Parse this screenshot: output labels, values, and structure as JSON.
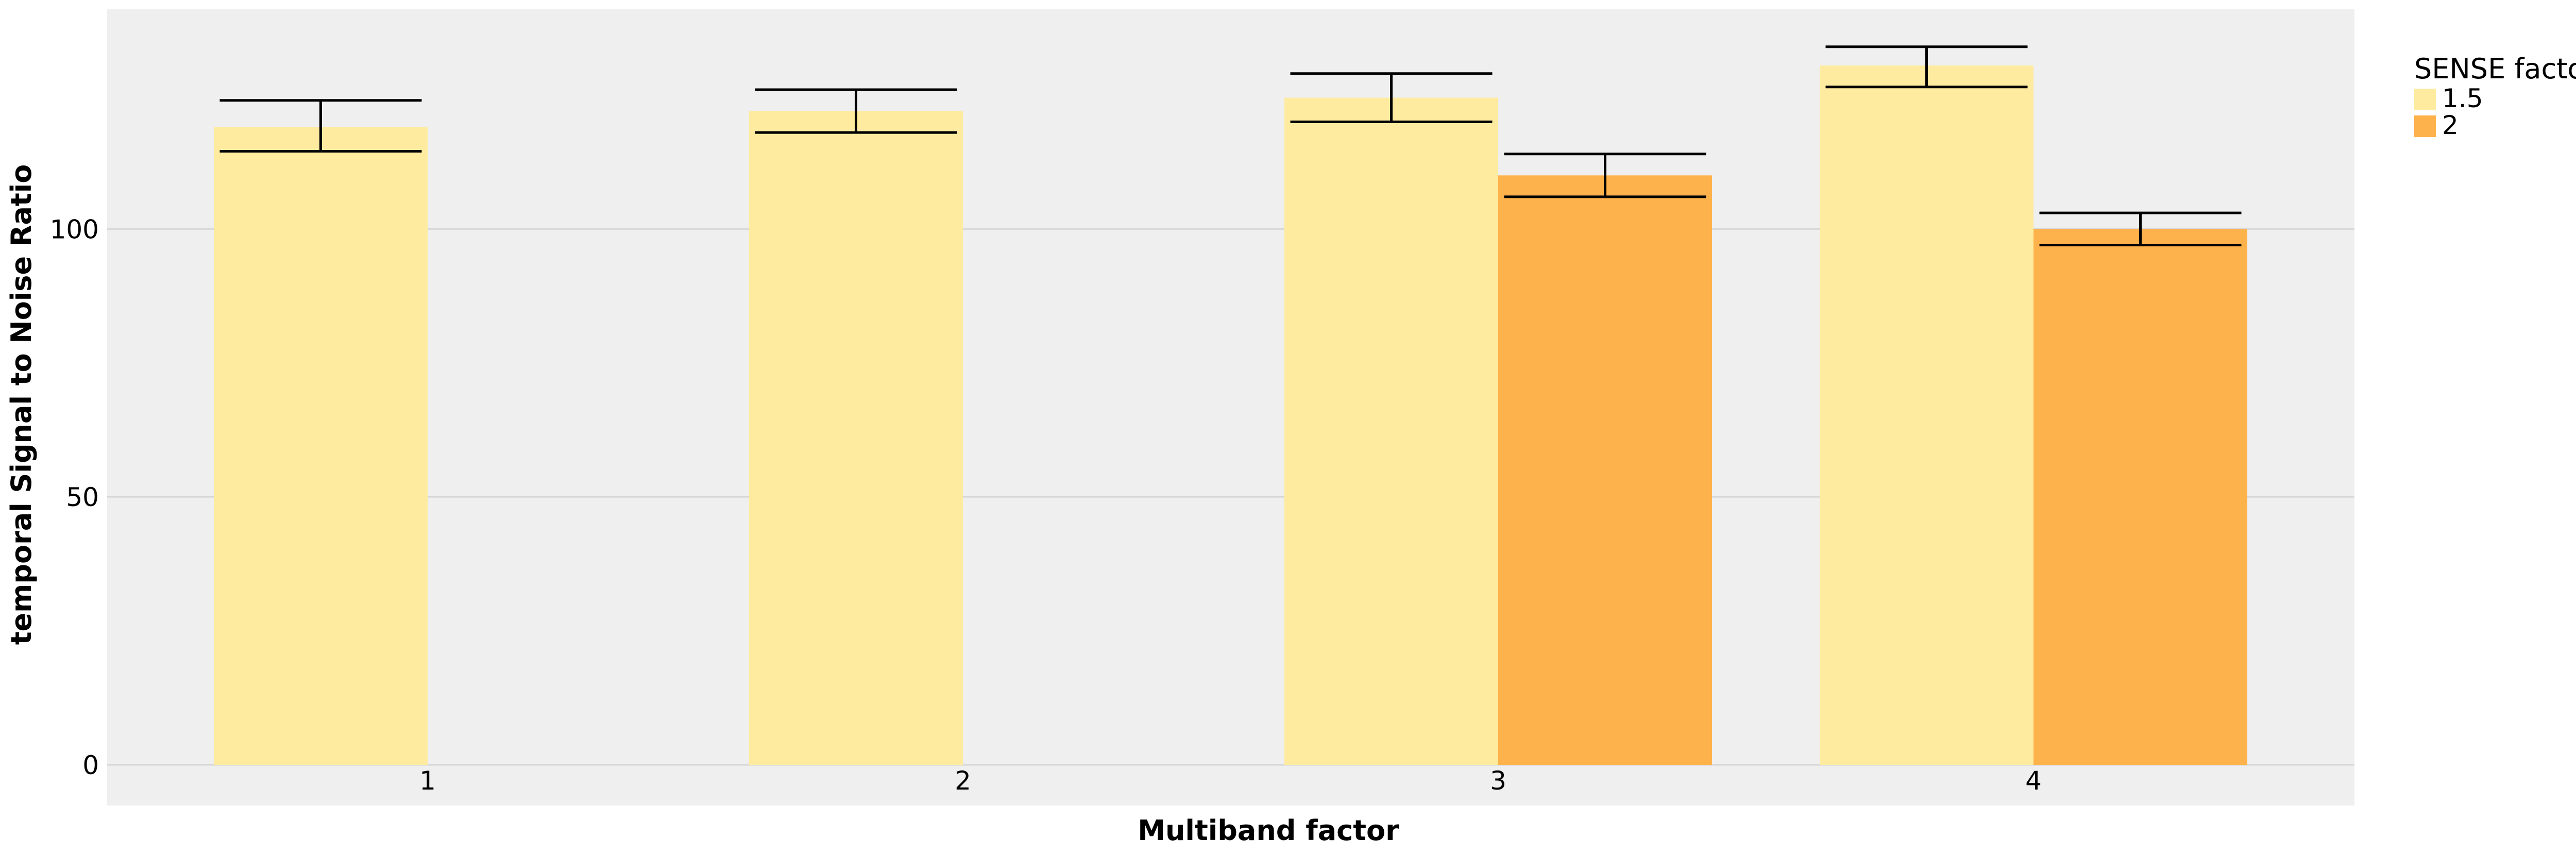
{
  "chart_data": {
    "type": "bar",
    "title": "",
    "xlabel": "Multiband factor",
    "ylabel": "temporal Signal to Noise Ratio",
    "categories": [
      "1",
      "2",
      "3",
      "4"
    ],
    "ylim": [
      0,
      141
    ],
    "yticks": [
      0,
      50,
      100
    ],
    "grid": true,
    "background_color": "#efefef",
    "grid_color": "#d6d6d6",
    "legend": {
      "title": "SENSE factor",
      "placement": "right-top"
    },
    "series": [
      {
        "name": "1.5",
        "color": "#feeb9f",
        "values": [
          119,
          122,
          124.5,
          130.5
        ],
        "error_low": [
          114.5,
          118,
          120,
          126.5
        ],
        "error_high": [
          124,
          126,
          129,
          134
        ]
      },
      {
        "name": "2",
        "color": "#feb24c",
        "values": [
          null,
          null,
          110,
          100
        ],
        "error_low": [
          null,
          null,
          106,
          97
        ],
        "error_high": [
          null,
          null,
          114,
          103
        ]
      }
    ]
  }
}
